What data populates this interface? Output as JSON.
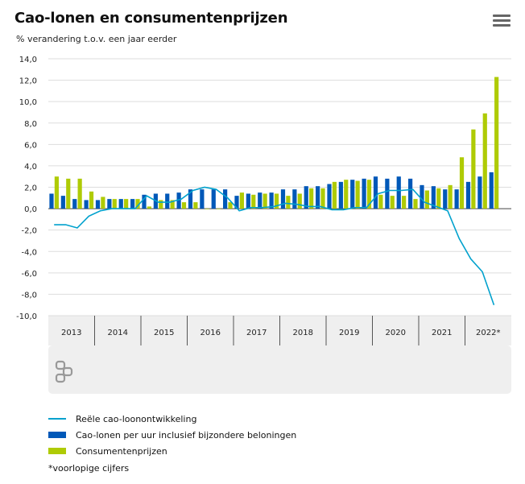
{
  "header": {
    "title": "Cao-lonen en consumentenprijzen",
    "subtitle": "% verandering t.o.v. een jaar eerder",
    "menu_icon": "hamburger-menu-icon"
  },
  "logo": {
    "name": "cbs-logo"
  },
  "colors": {
    "line": "#00a1cd",
    "bar_wages": "#0058b8",
    "bar_prices": "#afcb05",
    "grid": "#dddddd",
    "band": "#efefef"
  },
  "chart_data": {
    "type": "bar",
    "ylim": [
      -10,
      14
    ],
    "yticks": [
      "14,0",
      "12,0",
      "10,0",
      "8,0",
      "6,0",
      "4,0",
      "2,0",
      "0,0",
      "-2,0",
      "-4,0",
      "-6,0",
      "-8,0",
      "-10,0"
    ],
    "ytick_values": [
      14,
      12,
      10,
      8,
      6,
      4,
      2,
      0,
      -2,
      -4,
      -6,
      -8,
      -10
    ],
    "year_labels": [
      "2013",
      "2014",
      "2015",
      "2016",
      "2017",
      "2018",
      "2019",
      "2020",
      "2021",
      "2022*"
    ],
    "categories": [
      "2013 Q1",
      "2013 Q2",
      "2013 Q3",
      "2013 Q4",
      "2014 Q1",
      "2014 Q2",
      "2014 Q3",
      "2014 Q4",
      "2015 Q1",
      "2015 Q2",
      "2015 Q3",
      "2015 Q4",
      "2016 Q1",
      "2016 Q2",
      "2016 Q3",
      "2016 Q4",
      "2017 Q1",
      "2017 Q2",
      "2017 Q3",
      "2017 Q4",
      "2018 Q1",
      "2018 Q2",
      "2018 Q3",
      "2018 Q4",
      "2019 Q1",
      "2019 Q2",
      "2019 Q3",
      "2019 Q4",
      "2020 Q1",
      "2020 Q2",
      "2020 Q3",
      "2020 Q4",
      "2021 Q1",
      "2021 Q2",
      "2021 Q3",
      "2021 Q4",
      "2022 Q1",
      "2022 Q2",
      "2022 Q3",
      "2022 Q4"
    ],
    "series": [
      {
        "name": "Cao-lonen per uur inclusief bijzondere beloningen",
        "kind": "bar",
        "values": [
          1.4,
          1.2,
          0.9,
          0.8,
          0.8,
          0.9,
          0.9,
          0.9,
          1.3,
          1.4,
          1.4,
          1.5,
          1.8,
          1.8,
          1.8,
          1.8,
          1.2,
          1.4,
          1.5,
          1.5,
          1.8,
          1.8,
          2.1,
          2.1,
          2.3,
          2.5,
          2.7,
          2.8,
          3.0,
          2.8,
          3.0,
          2.8,
          2.2,
          2.1,
          1.8,
          1.8,
          2.5,
          3.0,
          3.4,
          null
        ]
      },
      {
        "name": "Consumentenprijzen",
        "kind": "bar",
        "values": [
          3.0,
          2.8,
          2.8,
          1.6,
          1.1,
          0.9,
          0.9,
          0.9,
          0.2,
          0.8,
          0.8,
          0.6,
          0.6,
          0.0,
          0.0,
          0.6,
          1.5,
          1.3,
          1.4,
          1.4,
          1.2,
          1.4,
          1.9,
          1.9,
          2.5,
          2.7,
          2.6,
          2.7,
          1.3,
          1.2,
          1.2,
          0.9,
          1.7,
          1.9,
          2.2,
          4.8,
          7.4,
          8.9,
          12.3,
          null
        ]
      },
      {
        "name": "Reële cao-loonontwikkeling",
        "kind": "line",
        "values": [
          -1.5,
          -1.5,
          -1.8,
          -0.7,
          -0.2,
          0.0,
          0.0,
          0.0,
          1.2,
          0.6,
          0.6,
          0.9,
          1.7,
          2.0,
          1.8,
          1.0,
          -0.2,
          0.1,
          0.1,
          0.2,
          0.5,
          0.4,
          0.2,
          0.2,
          -0.1,
          -0.1,
          0.1,
          0.1,
          1.4,
          1.7,
          1.7,
          1.8,
          0.6,
          0.2,
          -0.2,
          -2.8,
          -4.7,
          -5.9,
          -9.0,
          null
        ]
      }
    ]
  },
  "legend": [
    {
      "label": "Reële cao-loonontwikkeling",
      "symbol": "line",
      "color": "#00a1cd"
    },
    {
      "label": "Cao-lonen per uur inclusief bijzondere beloningen",
      "symbol": "box",
      "color": "#0058b8"
    },
    {
      "label": "Consumentenprijzen",
      "symbol": "box",
      "color": "#afcb05"
    }
  ],
  "footnote": "*voorlopige cijfers"
}
